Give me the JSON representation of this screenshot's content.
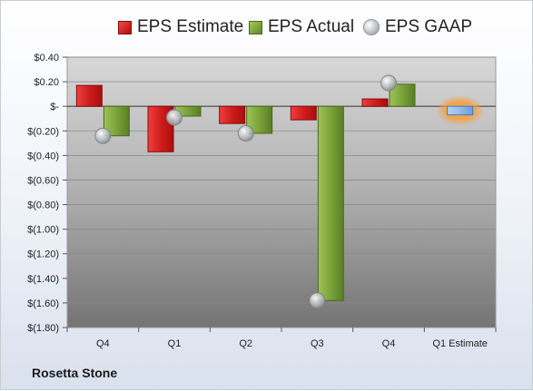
{
  "company": "Rosetta Stone",
  "legend": {
    "estimate": "EPS Estimate",
    "actual": "EPS Actual",
    "gaap": "EPS GAAP"
  },
  "colors": {
    "estimate": "#d41f1f",
    "actual": "#7aa33a",
    "gaap": "#b9bec4",
    "next_estimate": "#8ab4e8",
    "highlight": "#f5a040"
  },
  "chart_data": {
    "type": "bar",
    "categories": [
      "Q4",
      "Q1",
      "Q2",
      "Q3",
      "Q4",
      "Q1 Estimate"
    ],
    "ylim": [
      -1.8,
      0.4
    ],
    "yticks": [
      0.4,
      0.2,
      0,
      -0.2,
      -0.4,
      -0.6,
      -0.8,
      -1.0,
      -1.2,
      -1.4,
      -1.6,
      -1.8
    ],
    "ytick_labels": [
      "$0.40",
      "$0.20",
      "$-",
      "$(0.20)",
      "$(0.40)",
      "$(0.60)",
      "$(0.80)",
      "$(1.00)",
      "$(1.20)",
      "$(1.40)",
      "$(1.60)",
      "$(1.80)"
    ],
    "grid": true,
    "legend_position": "top",
    "series": [
      {
        "name": "EPS Estimate",
        "values": [
          0.17,
          -0.37,
          -0.14,
          -0.11,
          0.06,
          null
        ]
      },
      {
        "name": "EPS Actual",
        "values": [
          -0.24,
          -0.08,
          -0.22,
          -1.58,
          0.18,
          null
        ]
      },
      {
        "name": "EPS GAAP",
        "values": [
          -0.24,
          -0.09,
          -0.22,
          -1.58,
          0.19,
          null
        ]
      }
    ],
    "next_estimate": {
      "category": "Q1 Estimate",
      "value": -0.07
    }
  }
}
